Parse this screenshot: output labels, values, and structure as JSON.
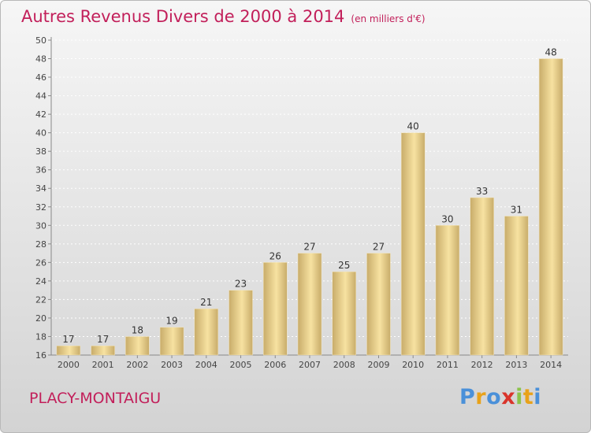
{
  "title": "Autres Revenus Divers de 2000 à 2014",
  "unit": "(en milliers d'€)",
  "location": "PLACY-MONTAIGU",
  "logo": {
    "letters": [
      "P",
      "r",
      "o",
      "x",
      "i",
      "t",
      "i"
    ],
    "colors": [
      "#4a90d9",
      "#e8a21a",
      "#4a90d9",
      "#d9342b",
      "#8bc34a",
      "#e8a21a",
      "#4a90d9"
    ]
  },
  "colors": {
    "accent": "#c21f5a",
    "bar_light": "#f7e2a1",
    "bar_dark": "#c8ac6a"
  },
  "chart_data": {
    "type": "bar",
    "categories": [
      "2000",
      "2001",
      "2002",
      "2003",
      "2004",
      "2005",
      "2006",
      "2007",
      "2008",
      "2009",
      "2010",
      "2011",
      "2012",
      "2013",
      "2014"
    ],
    "values": [
      17,
      17,
      18,
      19,
      21,
      23,
      26,
      27,
      25,
      27,
      40,
      30,
      33,
      31,
      48
    ],
    "ylim": [
      16,
      50
    ],
    "yticks": [
      16,
      18,
      20,
      22,
      24,
      26,
      28,
      30,
      32,
      34,
      36,
      38,
      40,
      42,
      44,
      46,
      48,
      50
    ],
    "grid": true,
    "xlabel": "",
    "ylabel": ""
  }
}
